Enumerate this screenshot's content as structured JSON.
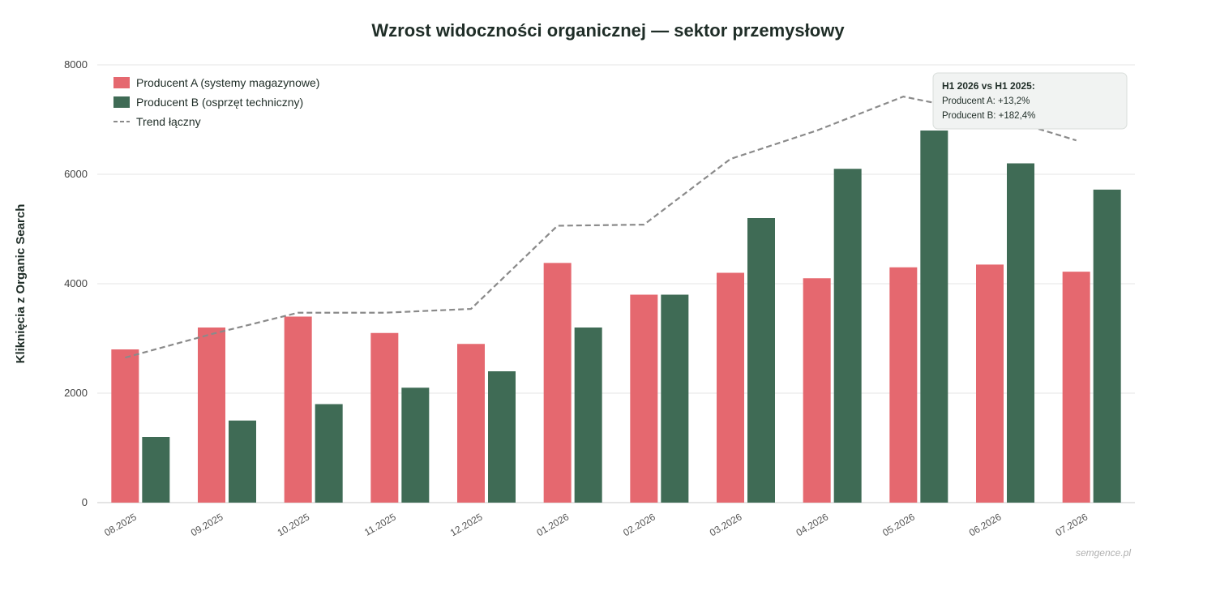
{
  "chart_data": {
    "type": "bar",
    "title": "Wzrost widoczności organicznej — sektor przemysłowy",
    "ylabel": "Kliknięcia z Organic Search",
    "xlabel": "",
    "ylim": [
      0,
      8000
    ],
    "yticks": [
      0,
      2000,
      4000,
      6000,
      8000
    ],
    "grid": true,
    "legend_position": "top-left",
    "categories": [
      "08.2025",
      "09.2025",
      "10.2025",
      "11.2025",
      "12.2025",
      "01.2026",
      "02.2026",
      "03.2026",
      "04.2026",
      "05.2026",
      "06.2026",
      "07.2026"
    ],
    "series": [
      {
        "name": "Producent A (systemy magazynowe)",
        "type": "bar",
        "color": "#e5686f",
        "values": [
          2800,
          3200,
          3400,
          3100,
          2900,
          4380,
          3800,
          4200,
          4100,
          4300,
          4350,
          4220
        ]
      },
      {
        "name": "Producent B (osprzęt techniczny)",
        "type": "bar",
        "color": "#3f6b55",
        "values": [
          1200,
          1500,
          1800,
          2100,
          2400,
          3200,
          3800,
          5200,
          6100,
          6800,
          6200,
          5720
        ]
      },
      {
        "name": "Trend łączny",
        "type": "line",
        "style": "dashed",
        "color": "#8a8a8a",
        "values": [
          2650,
          3080,
          3470,
          3470,
          3540,
          5060,
          5080,
          6280,
          6800,
          7420,
          7100,
          6620
        ]
      }
    ],
    "annotation": {
      "title": "H1 2026 vs H1 2025:",
      "lines": [
        "Producent A: +13,2%",
        "Producent B: +182,4%"
      ]
    },
    "source": "semgence.pl"
  }
}
